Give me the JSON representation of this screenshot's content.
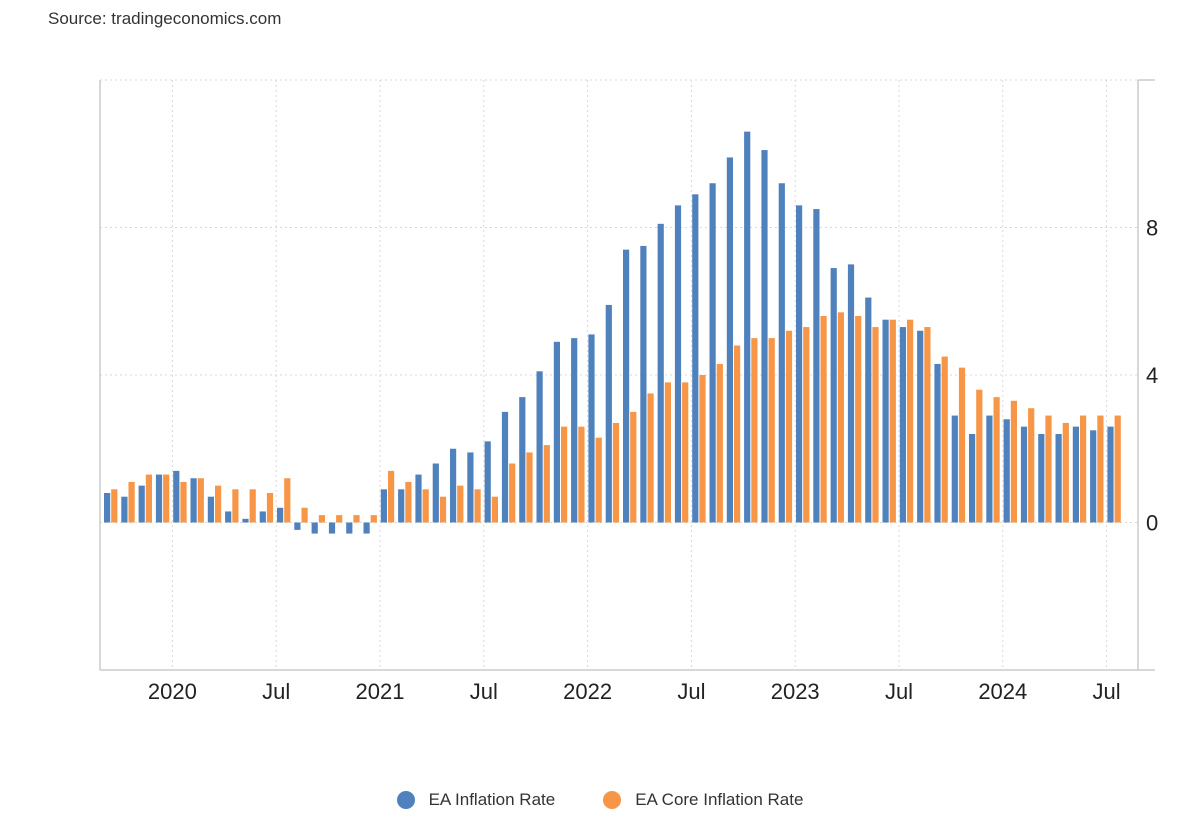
{
  "source": "Source: tradingeconomics.com",
  "colors": {
    "inflation": "#4f81bd",
    "core": "#f79646",
    "grid": "#d9d9d9",
    "axis": "#cccccc"
  },
  "legend": [
    {
      "label": "EA Inflation Rate",
      "color": "#4f81bd"
    },
    {
      "label": "EA Core Inflation Rate",
      "color": "#f79646"
    }
  ],
  "chart_data": {
    "type": "bar",
    "ylim": [
      -4,
      12
    ],
    "yticks": [
      "0",
      "4",
      "8"
    ],
    "xticks": [
      "2020",
      "Jul",
      "2021",
      "Jul",
      "2022",
      "Jul",
      "2023",
      "Jul",
      "2024",
      "Jul"
    ],
    "grid": true,
    "legend_position": "bottom",
    "categories": [
      "2019-09",
      "2019-10",
      "2019-11",
      "2019-12",
      "2020-01",
      "2020-02",
      "2020-03",
      "2020-04",
      "2020-05",
      "2020-06",
      "2020-07",
      "2020-08",
      "2020-09",
      "2020-10",
      "2020-11",
      "2020-12",
      "2021-01",
      "2021-02",
      "2021-03",
      "2021-04",
      "2021-05",
      "2021-06",
      "2021-07",
      "2021-08",
      "2021-09",
      "2021-10",
      "2021-11",
      "2021-12",
      "2022-01",
      "2022-02",
      "2022-03",
      "2022-04",
      "2022-05",
      "2022-06",
      "2022-07",
      "2022-08",
      "2022-09",
      "2022-10",
      "2022-11",
      "2022-12",
      "2023-01",
      "2023-02",
      "2023-03",
      "2023-04",
      "2023-05",
      "2023-06",
      "2023-07",
      "2023-08",
      "2023-09",
      "2023-10",
      "2023-11",
      "2023-12",
      "2024-01",
      "2024-02",
      "2024-03",
      "2024-04",
      "2024-05",
      "2024-06",
      "2024-07"
    ],
    "series": [
      {
        "name": "EA Inflation Rate",
        "values": [
          0.8,
          0.7,
          1.0,
          1.3,
          1.4,
          1.2,
          0.7,
          0.3,
          0.1,
          0.3,
          0.4,
          -0.2,
          -0.3,
          -0.3,
          -0.3,
          -0.3,
          0.9,
          0.9,
          1.3,
          1.6,
          2.0,
          1.9,
          2.2,
          3.0,
          3.4,
          4.1,
          4.9,
          5.0,
          5.1,
          5.9,
          7.4,
          7.5,
          8.1,
          8.6,
          8.9,
          9.2,
          9.9,
          10.6,
          10.1,
          9.2,
          8.6,
          8.5,
          6.9,
          7.0,
          6.1,
          5.5,
          5.3,
          5.2,
          4.3,
          2.9,
          2.4,
          2.9,
          2.8,
          2.6,
          2.4,
          2.4,
          2.6,
          2.5,
          2.6
        ]
      },
      {
        "name": "EA Core Inflation Rate",
        "values": [
          0.9,
          1.1,
          1.3,
          1.3,
          1.1,
          1.2,
          1.0,
          0.9,
          0.9,
          0.8,
          1.2,
          0.4,
          0.2,
          0.2,
          0.2,
          0.2,
          1.4,
          1.1,
          0.9,
          0.7,
          1.0,
          0.9,
          0.7,
          1.6,
          1.9,
          2.1,
          2.6,
          2.6,
          2.3,
          2.7,
          3.0,
          3.5,
          3.8,
          3.8,
          4.0,
          4.3,
          4.8,
          5.0,
          5.0,
          5.2,
          5.3,
          5.6,
          5.7,
          5.6,
          5.3,
          5.5,
          5.5,
          5.3,
          4.5,
          4.2,
          3.6,
          3.4,
          3.3,
          3.1,
          2.9,
          2.7,
          2.9,
          2.9,
          2.9
        ]
      }
    ]
  }
}
